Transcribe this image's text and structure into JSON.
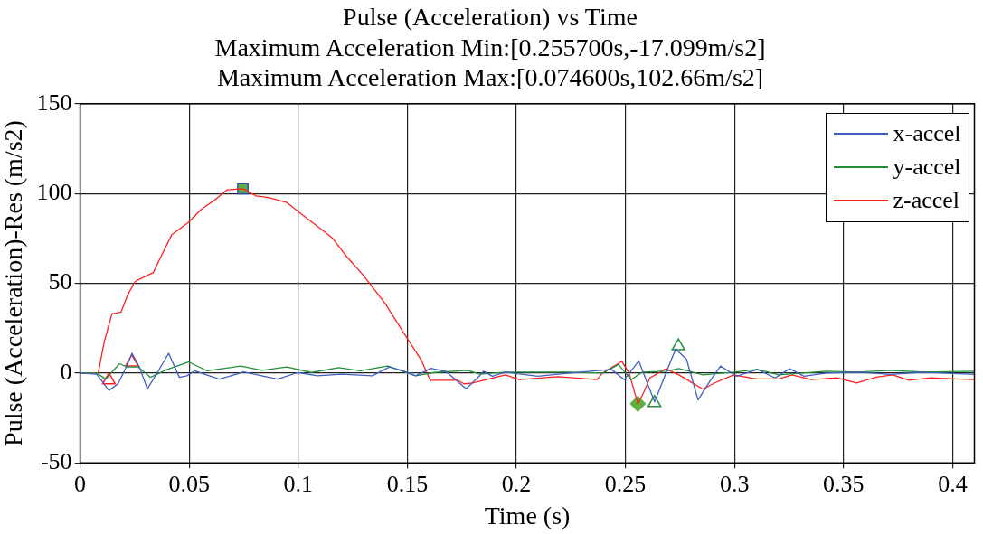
{
  "chart_data": {
    "type": "line",
    "title": "Pulse (Acceleration) vs Time",
    "subtitle": "Maximum Acceleration Min:[0.255700s,-17.099m/s2]\nMaximum Acceleration Max:[0.074600s,102.66m/s2]",
    "xlabel": "Time (s)",
    "ylabel": "Pulse (Acceleration)-Res (m/s2)",
    "xlim": [
      0,
      0.41
    ],
    "xticks": [
      0,
      0.05,
      0.1,
      0.15,
      0.2,
      0.25,
      0.3,
      0.35,
      0.4
    ],
    "ylim": [
      -50,
      150
    ],
    "yticks": [
      -50,
      0,
      50,
      100,
      150
    ],
    "grid": true,
    "legend": "top right",
    "marker": "none",
    "line_style": "solid",
    "series": [
      {
        "name": "x-accel",
        "color": "#4060c0",
        "x": [
          0,
          0.0076,
          0.0132,
          0.0174,
          0.021,
          0.0238,
          0.0273,
          0.0308,
          0.035,
          0.0406,
          0.0455,
          0.049,
          0.0525,
          0.0638,
          0.075,
          0.0905,
          0.0999,
          0.1088,
          0.12,
          0.134,
          0.1418,
          0.148,
          0.1538,
          0.1608,
          0.1678,
          0.177,
          0.1832,
          0.1849,
          0.189,
          0.195,
          0.2098,
          0.2245,
          0.2436,
          0.2495,
          0.2561,
          0.2634,
          0.2686,
          0.273,
          0.278,
          0.2833,
          0.2892,
          0.2936,
          0.301,
          0.3105,
          0.3186,
          0.3253,
          0.3319,
          0.3421,
          0.3568,
          0.3715,
          0.3862,
          0.41
        ],
        "values": [
          0,
          -0.6,
          -9.7,
          -6,
          3,
          11,
          3,
          -8.8,
          -0.6,
          11,
          -2.4,
          -1.5,
          1.2,
          -3.4,
          0.6,
          -3.4,
          0.3,
          -1.5,
          -0.6,
          -1.5,
          3.4,
          1.2,
          -1.5,
          2.6,
          0.8,
          -8.8,
          -1.5,
          1,
          -1.8,
          0.5,
          -1.8,
          0,
          2,
          -3.7,
          6.7,
          -16,
          0,
          13.4,
          7.7,
          -15,
          -3.7,
          3.9,
          -1.8,
          2,
          -2.7,
          2.4,
          -1.8,
          0,
          0.5,
          -0.8,
          0.5,
          -0.8
        ]
      },
      {
        "name": "y-accel",
        "color": "#20903a",
        "x": [
          0,
          0.0076,
          0.0118,
          0.018,
          0.0216,
          0.0265,
          0.0322,
          0.0399,
          0.0497,
          0.0582,
          0.0736,
          0.0835,
          0.0947,
          0.106,
          0.1186,
          0.1284,
          0.141,
          0.1538,
          0.1622,
          0.1777,
          0.1832,
          0.195,
          0.2245,
          0.2396,
          0.2468,
          0.2526,
          0.2577,
          0.2686,
          0.2745,
          0.2855,
          0.2996,
          0.3105,
          0.3204,
          0.3421,
          0.3568,
          0.3715,
          0.3862,
          0.41
        ],
        "values": [
          0,
          0,
          -3.4,
          5.2,
          3.4,
          3.4,
          -2.4,
          2,
          6.2,
          1.2,
          3.9,
          1.5,
          3.4,
          0.3,
          3,
          1.2,
          3.9,
          -1.5,
          0.3,
          1.5,
          -0.6,
          0.5,
          0.5,
          0,
          4.8,
          -3.7,
          0.5,
          1,
          2.5,
          -1,
          0.5,
          2,
          -1,
          1,
          0.5,
          1.5,
          0.5,
          1
        ]
      },
      {
        "name": "z-accel",
        "color": "#ff2020",
        "x": [
          0,
          0.0083,
          0.0111,
          0.0146,
          0.0188,
          0.0216,
          0.0252,
          0.0301,
          0.0336,
          0.0371,
          0.042,
          0.0497,
          0.0554,
          0.0624,
          0.0673,
          0.0746,
          0.0807,
          0.0863,
          0.0947,
          0.1003,
          0.11,
          0.1158,
          0.1214,
          0.1298,
          0.1397,
          0.148,
          0.1565,
          0.159,
          0.1605,
          0.173,
          0.176,
          0.18,
          0.195,
          0.2013,
          0.219,
          0.237,
          0.2395,
          0.2483,
          0.2517,
          0.2557,
          0.2583,
          0.2612,
          0.2686,
          0.2745,
          0.2855,
          0.2907,
          0.2996,
          0.31,
          0.3204,
          0.3263,
          0.3352,
          0.347,
          0.356,
          0.365,
          0.3726,
          0.38,
          0.39,
          0.4007,
          0.41
        ],
        "values": [
          0,
          0,
          17.6,
          33,
          34,
          43,
          51,
          54,
          56,
          65,
          77,
          84,
          91,
          97,
          102,
          102.66,
          98.6,
          97.7,
          95,
          89.6,
          80.6,
          75,
          66,
          54.5,
          39,
          23,
          7,
          0,
          -4,
          -4,
          -6,
          -5.6,
          -1,
          -3.7,
          -2,
          -3.7,
          0,
          6.5,
          0,
          -17.099,
          -11,
          -2.7,
          2.4,
          -1,
          -9,
          -5.6,
          -1,
          -3.3,
          -3.3,
          -1,
          -3.7,
          -2.7,
          -5.6,
          -2.3,
          -1,
          -4,
          -2.7,
          -3.3,
          -3.7
        ]
      },
      {
        "type": "scatter",
        "marker": "square",
        "color": "#60b040",
        "x": [
          0.0746
        ],
        "values": [
          102.66
        ]
      },
      {
        "type": "scatter",
        "marker": "diamond",
        "color": "#60b040",
        "x": [
          0.2557
        ],
        "values": [
          -17.099
        ]
      },
      {
        "type": "scatter",
        "marker": "triangle",
        "color": "#ff2020",
        "x": [
          0.0132,
          0.0237
        ],
        "values": [
          -4,
          6
        ]
      },
      {
        "type": "scatter",
        "marker": "triangle",
        "color": "#20903a",
        "x": [
          0.2633,
          0.2743
        ],
        "values": [
          -16.5,
          15
        ]
      }
    ]
  }
}
